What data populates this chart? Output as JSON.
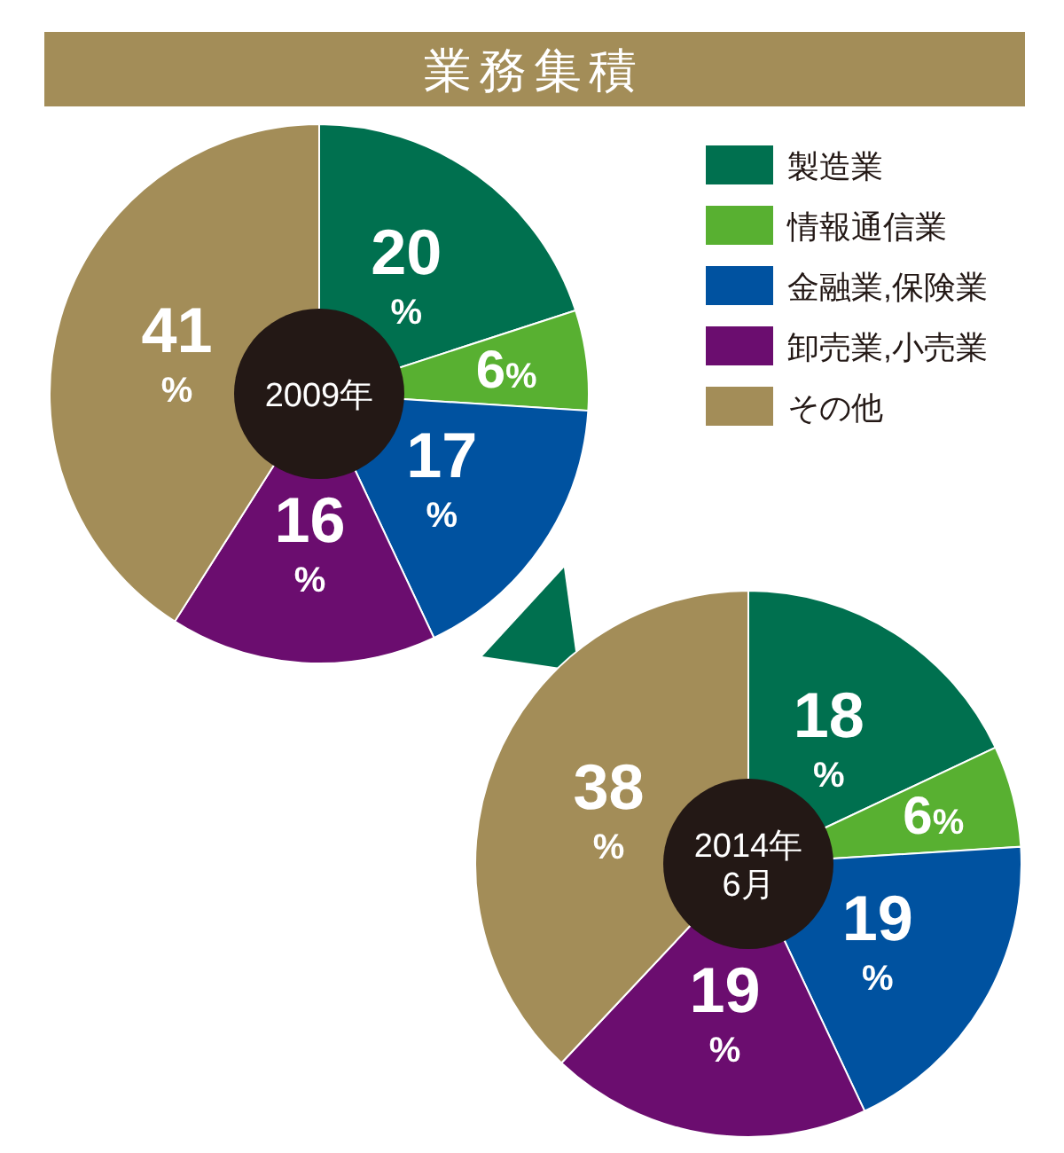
{
  "chart_data": [
    {
      "type": "donut",
      "title": "2009年",
      "annotations": [
        "業務集積"
      ],
      "categories": [
        "製造業",
        "情報通信業",
        "金融業,保険業",
        "卸売業,小売業",
        "その他"
      ],
      "values": [
        20,
        6,
        17,
        16,
        41
      ],
      "value_labels": [
        "20%",
        "6%",
        "17%",
        "16%",
        "41%"
      ],
      "colors": [
        "#00704f",
        "#58b031",
        "#0052a0",
        "#6b0d6f",
        "#a38d58"
      ],
      "legend": "top right"
    },
    {
      "type": "donut",
      "title": "2014年 6月",
      "categories": [
        null,
        null,
        null,
        null,
        null
      ],
      "values": [
        18,
        6,
        19,
        19,
        38
      ],
      "value_labels": [
        "18%",
        "6%",
        "19%",
        "19%",
        "38%"
      ],
      "colors": [
        "#00704f",
        "#58b031",
        "#0052a0",
        "#6b0d6f",
        "#a38d58"
      ],
      "legend": false
    }
  ]
}
